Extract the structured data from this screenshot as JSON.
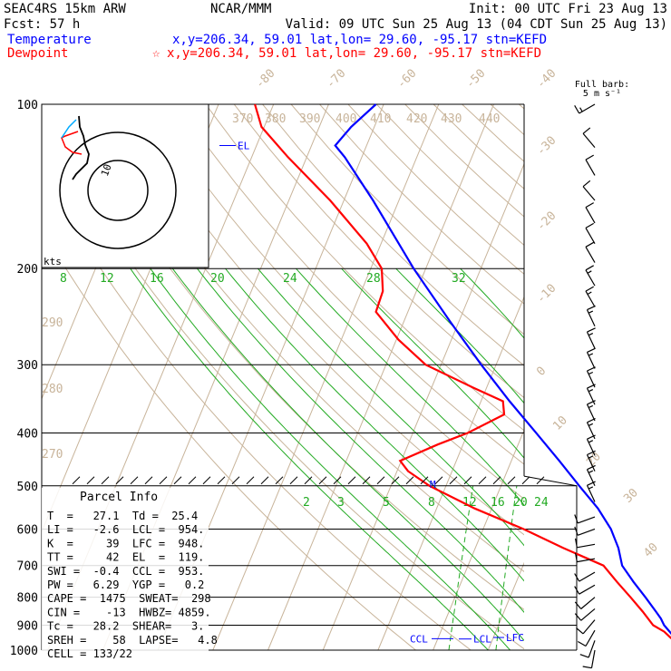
{
  "header": {
    "line1_left": "SEAC4RS 15km ARW",
    "line1_mid": "NCAR/MMM",
    "line1_right": "Init: 00 UTC Fri 23 Aug 13",
    "line2_left": "Fcst:    57 h",
    "line2_right": "Valid: 09 UTC Sun 25 Aug 13 (04 CDT Sun 25 Aug 13)",
    "temperature_label": "Temperature",
    "temperature_info": "x,y=206.34, 59.01   lat,lon= 29.60, -95.17  stn=KEFD",
    "dewpoint_label": "Dewpoint",
    "dewpoint_info": "x,y=206.34, 59.01   lat,lon= 29.60, -95.17  stn=KEFD",
    "dewpoint_marker": "☆"
  },
  "colors": {
    "temperature": "#0000ff",
    "dewpoint": "#ff0000",
    "isotherm": "#c8b49a",
    "dry_adiabat": "#c8b49a",
    "moist_adiabat": "#22aa22",
    "mixing_ratio": "#22aa22",
    "text": "#000000"
  },
  "barb_header": {
    "line1": "Full barb:",
    "line2": "5 m s⁻¹"
  },
  "hodograph": {
    "units": "kts",
    "ring_label": "10"
  },
  "parcel_info": {
    "title": "Parcel Info",
    "rows": [
      "T  =   27.1  Td =  25.4",
      "LI =   -2.6  LCL =  954.",
      "K  =     39  LFC =  948.",
      "TT =     42  EL  =  119.",
      "SWI =  -0.4  CCL =  953.",
      "PW =   6.29  YGP =   0.2",
      "CAPE =  1475  SWEAT=  298",
      "CIN =    -13  HWBZ= 4859.",
      "Tc =   28.2  SHEAR=   3.",
      "SREH =    58  LAPSE=   4.8",
      "CELL = 133/22"
    ]
  },
  "level_labels": {
    "el": "EL",
    "m": "M",
    "ccl": "CCL",
    "lcl": "LCL",
    "lfc": "LFC"
  },
  "chart_data": {
    "type": "line",
    "title": "",
    "y_axis": {
      "label": "",
      "scale": "log",
      "range": [
        1000,
        100
      ],
      "ticks": [
        "100",
        "200",
        "300",
        "400",
        "500",
        "600",
        "700",
        "800",
        "900",
        "1000"
      ]
    },
    "isotherm_labels": [
      "-80",
      "-70",
      "-60",
      "-50",
      "-40",
      "-30",
      "-20",
      "-10",
      "0",
      "10",
      "20",
      "30",
      "40"
    ],
    "dry_adiabat_labels": [
      "370",
      "380",
      "390",
      "400",
      "410",
      "420",
      "430",
      "440",
      "290",
      "280",
      "270"
    ],
    "moist_adiabat_labels": [
      "8",
      "12",
      "16",
      "20",
      "24",
      "28",
      "32"
    ],
    "mixing_ratio_labels": [
      "2",
      "3",
      "5",
      "8",
      "12",
      "16",
      "20",
      "24"
    ],
    "series": [
      {
        "name": "Temperature",
        "unit": "C",
        "points": [
          [
            1000,
            26.8
          ],
          [
            975,
            24.9
          ],
          [
            950,
            23.0
          ],
          [
            925,
            21.6
          ],
          [
            900,
            20.1
          ],
          [
            875,
            19.0
          ],
          [
            850,
            17.6
          ],
          [
            800,
            14.6
          ],
          [
            750,
            11.3
          ],
          [
            700,
            8.0
          ],
          [
            650,
            6.0
          ],
          [
            600,
            3.2
          ],
          [
            550,
            -0.7
          ],
          [
            500,
            -5.8
          ],
          [
            450,
            -11.3
          ],
          [
            400,
            -17.6
          ],
          [
            350,
            -24.8
          ],
          [
            300,
            -32.7
          ],
          [
            250,
            -41.6
          ],
          [
            200,
            -52.2
          ],
          [
            150,
            -64.7
          ],
          [
            125,
            -73.1
          ],
          [
            119,
            -75.7
          ],
          [
            110,
            -74.2
          ],
          [
            100,
            -71.4
          ]
        ]
      },
      {
        "name": "Dewpoint",
        "unit": "C",
        "points": [
          [
            1000,
            25.3
          ],
          [
            975,
            24.6
          ],
          [
            950,
            22.3
          ],
          [
            925,
            20.6
          ],
          [
            900,
            18.1
          ],
          [
            850,
            15.2
          ],
          [
            800,
            11.9
          ],
          [
            750,
            8.3
          ],
          [
            700,
            4.6
          ],
          [
            650,
            -4.0
          ],
          [
            600,
            -12.7
          ],
          [
            550,
            -23.1
          ],
          [
            500,
            -33.0
          ],
          [
            470,
            -38.0
          ],
          [
            450,
            -40.2
          ],
          [
            420,
            -34.6
          ],
          [
            400,
            -30.0
          ],
          [
            370,
            -24.8
          ],
          [
            350,
            -26.0
          ],
          [
            330,
            -32.6
          ],
          [
            300,
            -42.8
          ],
          [
            270,
            -49.6
          ],
          [
            240,
            -55.8
          ],
          [
            220,
            -56.1
          ],
          [
            200,
            -58.0
          ],
          [
            180,
            -62.6
          ],
          [
            150,
            -72.5
          ],
          [
            125,
            -83.4
          ],
          [
            110,
            -90.5
          ],
          [
            100,
            -93.4
          ]
        ]
      }
    ],
    "wind_profile": [
      {
        "p": 100,
        "spd": 15,
        "dir": 240
      },
      {
        "p": 120,
        "spd": 10,
        "dir": 320
      },
      {
        "p": 135,
        "spd": 8,
        "dir": 330
      },
      {
        "p": 150,
        "spd": 8,
        "dir": 320
      },
      {
        "p": 165,
        "spd": 10,
        "dir": 330
      },
      {
        "p": 180,
        "spd": 10,
        "dir": 330
      },
      {
        "p": 195,
        "spd": 10,
        "dir": 330
      },
      {
        "p": 215,
        "spd": 15,
        "dir": 330
      },
      {
        "p": 235,
        "spd": 15,
        "dir": 330
      },
      {
        "p": 255,
        "spd": 15,
        "dir": 335
      },
      {
        "p": 280,
        "spd": 15,
        "dir": 335
      },
      {
        "p": 305,
        "spd": 15,
        "dir": 335
      },
      {
        "p": 330,
        "spd": 15,
        "dir": 335
      },
      {
        "p": 355,
        "spd": 15,
        "dir": 335
      },
      {
        "p": 380,
        "spd": 15,
        "dir": 335
      },
      {
        "p": 410,
        "spd": 15,
        "dir": 335
      },
      {
        "p": 440,
        "spd": 15,
        "dir": 335
      },
      {
        "p": 470,
        "spd": 15,
        "dir": 335
      },
      {
        "p": 500,
        "spd": 15,
        "dir": 335
      },
      {
        "p": 535,
        "spd": 15,
        "dir": 335
      },
      {
        "p": 570,
        "spd": 10,
        "dir": 250
      },
      {
        "p": 600,
        "spd": 10,
        "dir": 250
      },
      {
        "p": 640,
        "spd": 10,
        "dir": 260
      },
      {
        "p": 680,
        "spd": 10,
        "dir": 260
      },
      {
        "p": 720,
        "spd": 10,
        "dir": 240
      },
      {
        "p": 760,
        "spd": 10,
        "dir": 240
      },
      {
        "p": 800,
        "spd": 10,
        "dir": 230
      },
      {
        "p": 840,
        "spd": 10,
        "dir": 230
      },
      {
        "p": 880,
        "spd": 10,
        "dir": 220
      },
      {
        "p": 920,
        "spd": 10,
        "dir": 210
      },
      {
        "p": 960,
        "spd": 10,
        "dir": 200
      },
      {
        "p": 1000,
        "spd": 10,
        "dir": 190
      }
    ]
  }
}
